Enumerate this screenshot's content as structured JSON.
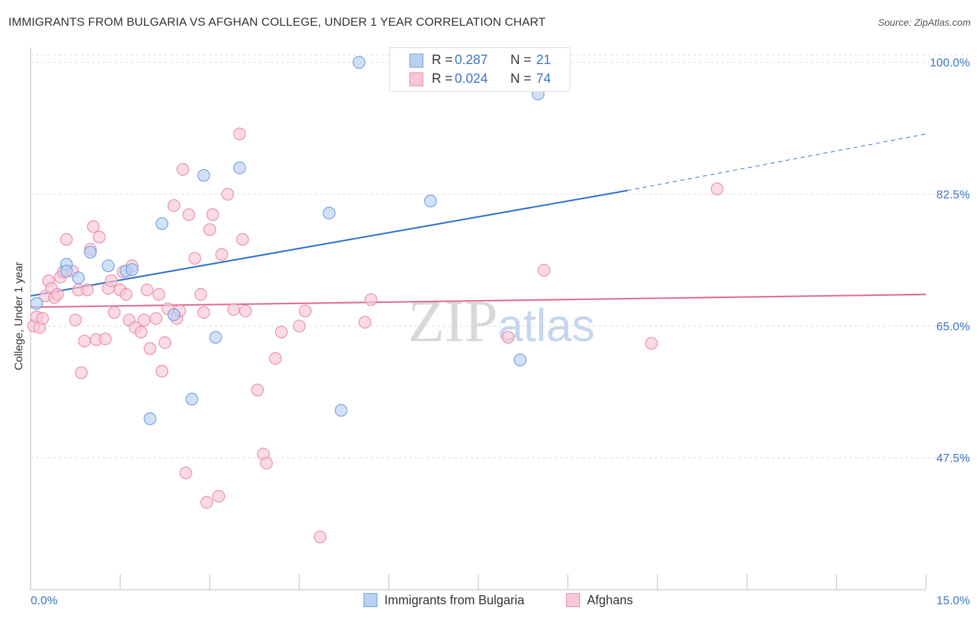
{
  "chart_data": {
    "type": "scatter",
    "title": "IMMIGRANTS FROM BULGARIA VS AFGHAN COLLEGE, UNDER 1 YEAR CORRELATION CHART",
    "source": "Source: ZipAtlas.com",
    "xlabel": "",
    "ylabel": "College, Under 1 year",
    "xlim": [
      0,
      15
    ],
    "ylim": [
      30,
      102
    ],
    "x_tick_labels": [
      "0.0%",
      "15.0%"
    ],
    "y_ticks": [
      47.5,
      65.0,
      82.5,
      100.0
    ],
    "y_tick_labels": [
      "47.5%",
      "65.0%",
      "82.5%",
      "100.0%"
    ],
    "grid": true,
    "watermark": "ZIPatlas",
    "legend": {
      "position": "top-center",
      "entries": [
        {
          "r_label": "R =",
          "r_value": "0.287",
          "n_label": "N =",
          "n_value": "21"
        },
        {
          "r_label": "R =",
          "r_value": "0.024",
          "n_label": "N =",
          "n_value": "74"
        }
      ]
    },
    "series": [
      {
        "name": "Immigrants from Bulgaria",
        "color": "#6fa0e0",
        "fill": "#b9d1f3",
        "trend": {
          "x_start": 0.0,
          "y_start": 69.0,
          "x_end": 10.0,
          "y_end": 83.0,
          "x_dash_end": 15.0,
          "y_dash_end": 90.5,
          "color": "#2f6fcc"
        },
        "points": [
          {
            "x": 0.1,
            "y": 68.0
          },
          {
            "x": 0.6,
            "y": 73.2
          },
          {
            "x": 0.6,
            "y": 72.3
          },
          {
            "x": 0.8,
            "y": 71.4
          },
          {
            "x": 1.0,
            "y": 74.8
          },
          {
            "x": 1.3,
            "y": 73.0
          },
          {
            "x": 1.6,
            "y": 72.3
          },
          {
            "x": 1.7,
            "y": 72.5
          },
          {
            "x": 2.2,
            "y": 78.6
          },
          {
            "x": 2.0,
            "y": 52.7
          },
          {
            "x": 2.4,
            "y": 66.5
          },
          {
            "x": 2.7,
            "y": 55.3
          },
          {
            "x": 2.9,
            "y": 85.0
          },
          {
            "x": 3.1,
            "y": 63.5
          },
          {
            "x": 3.5,
            "y": 86.0
          },
          {
            "x": 5.0,
            "y": 80.0
          },
          {
            "x": 5.2,
            "y": 53.8
          },
          {
            "x": 5.5,
            "y": 100.0
          },
          {
            "x": 6.7,
            "y": 81.6
          },
          {
            "x": 8.2,
            "y": 60.5
          },
          {
            "x": 8.5,
            "y": 95.8
          }
        ]
      },
      {
        "name": "Afghans",
        "color": "#e88fac",
        "fill": "#f8c6d6",
        "trend": {
          "x_start": 0.0,
          "y_start": 67.5,
          "x_end": 15.0,
          "y_end": 69.2,
          "color": "#e06b94"
        },
        "points": [
          {
            "x": 0.05,
            "y": 65.0
          },
          {
            "x": 0.1,
            "y": 66.2
          },
          {
            "x": 0.15,
            "y": 64.8
          },
          {
            "x": 0.2,
            "y": 66.0
          },
          {
            "x": 0.25,
            "y": 69.0
          },
          {
            "x": 0.3,
            "y": 71.0
          },
          {
            "x": 0.35,
            "y": 70.0
          },
          {
            "x": 0.4,
            "y": 68.8
          },
          {
            "x": 0.45,
            "y": 69.2
          },
          {
            "x": 0.5,
            "y": 71.5
          },
          {
            "x": 0.55,
            "y": 72.2
          },
          {
            "x": 0.6,
            "y": 76.5
          },
          {
            "x": 0.7,
            "y": 72.3
          },
          {
            "x": 0.75,
            "y": 65.8
          },
          {
            "x": 0.8,
            "y": 69.8
          },
          {
            "x": 0.85,
            "y": 58.8
          },
          {
            "x": 0.9,
            "y": 63.0
          },
          {
            "x": 0.95,
            "y": 69.8
          },
          {
            "x": 1.0,
            "y": 75.2
          },
          {
            "x": 1.05,
            "y": 78.2
          },
          {
            "x": 1.1,
            "y": 63.2
          },
          {
            "x": 1.15,
            "y": 76.8
          },
          {
            "x": 1.25,
            "y": 63.3
          },
          {
            "x": 1.3,
            "y": 70.0
          },
          {
            "x": 1.35,
            "y": 71.0
          },
          {
            "x": 1.4,
            "y": 66.8
          },
          {
            "x": 1.5,
            "y": 69.8
          },
          {
            "x": 1.55,
            "y": 72.2
          },
          {
            "x": 1.6,
            "y": 69.2
          },
          {
            "x": 1.65,
            "y": 65.8
          },
          {
            "x": 1.7,
            "y": 73.0
          },
          {
            "x": 1.75,
            "y": 64.8
          },
          {
            "x": 1.85,
            "y": 64.2
          },
          {
            "x": 1.9,
            "y": 65.8
          },
          {
            "x": 1.95,
            "y": 69.8
          },
          {
            "x": 2.0,
            "y": 62.0
          },
          {
            "x": 2.1,
            "y": 66.0
          },
          {
            "x": 2.15,
            "y": 69.2
          },
          {
            "x": 2.2,
            "y": 59.0
          },
          {
            "x": 2.25,
            "y": 62.8
          },
          {
            "x": 2.3,
            "y": 67.3
          },
          {
            "x": 2.4,
            "y": 81.0
          },
          {
            "x": 2.45,
            "y": 66.0
          },
          {
            "x": 2.5,
            "y": 67.0
          },
          {
            "x": 2.55,
            "y": 85.8
          },
          {
            "x": 2.6,
            "y": 45.5
          },
          {
            "x": 2.65,
            "y": 79.8
          },
          {
            "x": 2.75,
            "y": 74.0
          },
          {
            "x": 2.85,
            "y": 69.2
          },
          {
            "x": 2.9,
            "y": 66.8
          },
          {
            "x": 2.95,
            "y": 41.6
          },
          {
            "x": 3.0,
            "y": 77.8
          },
          {
            "x": 3.05,
            "y": 79.8
          },
          {
            "x": 3.15,
            "y": 42.4
          },
          {
            "x": 3.2,
            "y": 74.5
          },
          {
            "x": 3.3,
            "y": 82.5
          },
          {
            "x": 3.4,
            "y": 67.2
          },
          {
            "x": 3.5,
            "y": 90.5
          },
          {
            "x": 3.55,
            "y": 76.5
          },
          {
            "x": 3.6,
            "y": 67.0
          },
          {
            "x": 3.8,
            "y": 56.5
          },
          {
            "x": 3.9,
            "y": 48.0
          },
          {
            "x": 3.95,
            "y": 46.8
          },
          {
            "x": 4.1,
            "y": 60.7
          },
          {
            "x": 4.2,
            "y": 64.2
          },
          {
            "x": 4.5,
            "y": 65.0
          },
          {
            "x": 4.6,
            "y": 67.0
          },
          {
            "x": 4.85,
            "y": 37.0
          },
          {
            "x": 5.6,
            "y": 65.5
          },
          {
            "x": 5.7,
            "y": 68.5
          },
          {
            "x": 8.0,
            "y": 63.5
          },
          {
            "x": 8.6,
            "y": 72.4
          },
          {
            "x": 10.4,
            "y": 62.7
          },
          {
            "x": 11.5,
            "y": 83.2
          }
        ]
      }
    ]
  }
}
